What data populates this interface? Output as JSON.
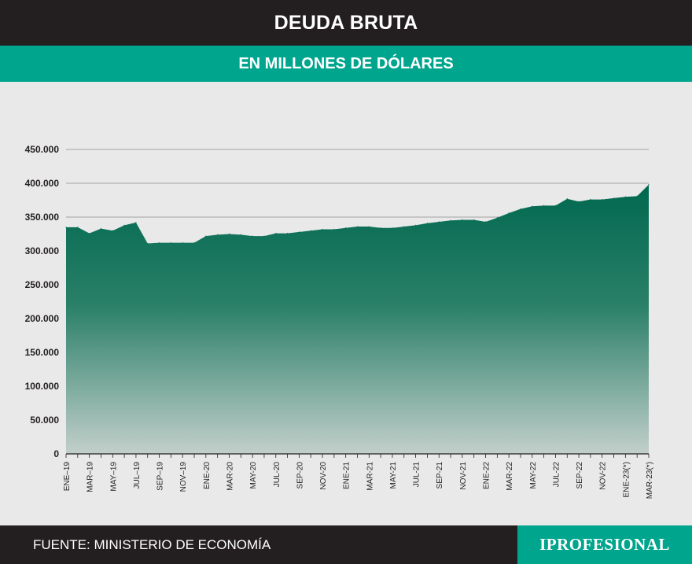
{
  "header": {
    "title": "DEUDA BRUTA"
  },
  "subheader": {
    "subtitle": "EN MILLONES DE DÓLARES"
  },
  "footer": {
    "source": "FUENTE: MINISTERIO DE ECONOMÍA",
    "brand": "IPROFESIONAL"
  },
  "colors": {
    "header_bg": "#231f20",
    "accent": "#00a58e",
    "area_top": "#00684f",
    "area_bottom": "#c3cfcb",
    "background": "#e9e9ea"
  },
  "chart_data": {
    "type": "area",
    "title": "DEUDA BRUTA",
    "subtitle": "EN MILLONES DE DÓLARES",
    "xlabel": "",
    "ylabel": "",
    "ylim": [
      0,
      450000
    ],
    "grid": true,
    "y_ticks": [
      {
        "value": 0,
        "label": "0"
      },
      {
        "value": 50000,
        "label": "50.000"
      },
      {
        "value": 100000,
        "label": "100.000"
      },
      {
        "value": 150000,
        "label": "150.000"
      },
      {
        "value": 200000,
        "label": "200.000"
      },
      {
        "value": 250000,
        "label": "250.000"
      },
      {
        "value": 300000,
        "label": "300.000"
      },
      {
        "value": 350000,
        "label": "350.000"
      },
      {
        "value": 400000,
        "label": "400.000"
      },
      {
        "value": 450000,
        "label": "450.000"
      }
    ],
    "x_tick_labels": [
      {
        "index": 0,
        "label": "ENE–19"
      },
      {
        "index": 2,
        "label": "MAR–19"
      },
      {
        "index": 4,
        "label": "MAY–19"
      },
      {
        "index": 6,
        "label": "JUL–19"
      },
      {
        "index": 8,
        "label": "SEP–19"
      },
      {
        "index": 10,
        "label": "NOV–19"
      },
      {
        "index": 12,
        "label": "ENE-20"
      },
      {
        "index": 14,
        "label": "MAR-20"
      },
      {
        "index": 16,
        "label": "MAY-20"
      },
      {
        "index": 18,
        "label": "JUL-20"
      },
      {
        "index": 20,
        "label": "SEP-20"
      },
      {
        "index": 22,
        "label": "NOV-20"
      },
      {
        "index": 24,
        "label": "ENE-21"
      },
      {
        "index": 26,
        "label": "MAR-21"
      },
      {
        "index": 28,
        "label": "MAY-21"
      },
      {
        "index": 30,
        "label": "JUL-21"
      },
      {
        "index": 32,
        "label": "SEP-21"
      },
      {
        "index": 34,
        "label": "NOV-21"
      },
      {
        "index": 36,
        "label": "ENE-22"
      },
      {
        "index": 38,
        "label": "MAR-22"
      },
      {
        "index": 40,
        "label": "MAY-22"
      },
      {
        "index": 42,
        "label": "JUL-22"
      },
      {
        "index": 44,
        "label": "SEP-22"
      },
      {
        "index": 46,
        "label": "NOV-22"
      },
      {
        "index": 48,
        "label": "ENE-23(*)"
      },
      {
        "index": 50,
        "label": "MAR-23(*)"
      }
    ],
    "series": [
      {
        "values": [
          335000,
          335000,
          326000,
          333000,
          330000,
          338000,
          342000,
          311000,
          312000,
          312000,
          312000,
          312000,
          322000,
          324000,
          325000,
          324000,
          322000,
          322000,
          326000,
          326000,
          328000,
          330000,
          332000,
          332000,
          334000,
          336000,
          336000,
          334000,
          334000,
          336000,
          338000,
          341000,
          343000,
          345000,
          346000,
          346000,
          343000,
          349000,
          356000,
          362000,
          366000,
          367000,
          367000,
          377000,
          373000,
          376000,
          376000,
          378000,
          380000,
          381000,
          398000
        ]
      }
    ]
  }
}
